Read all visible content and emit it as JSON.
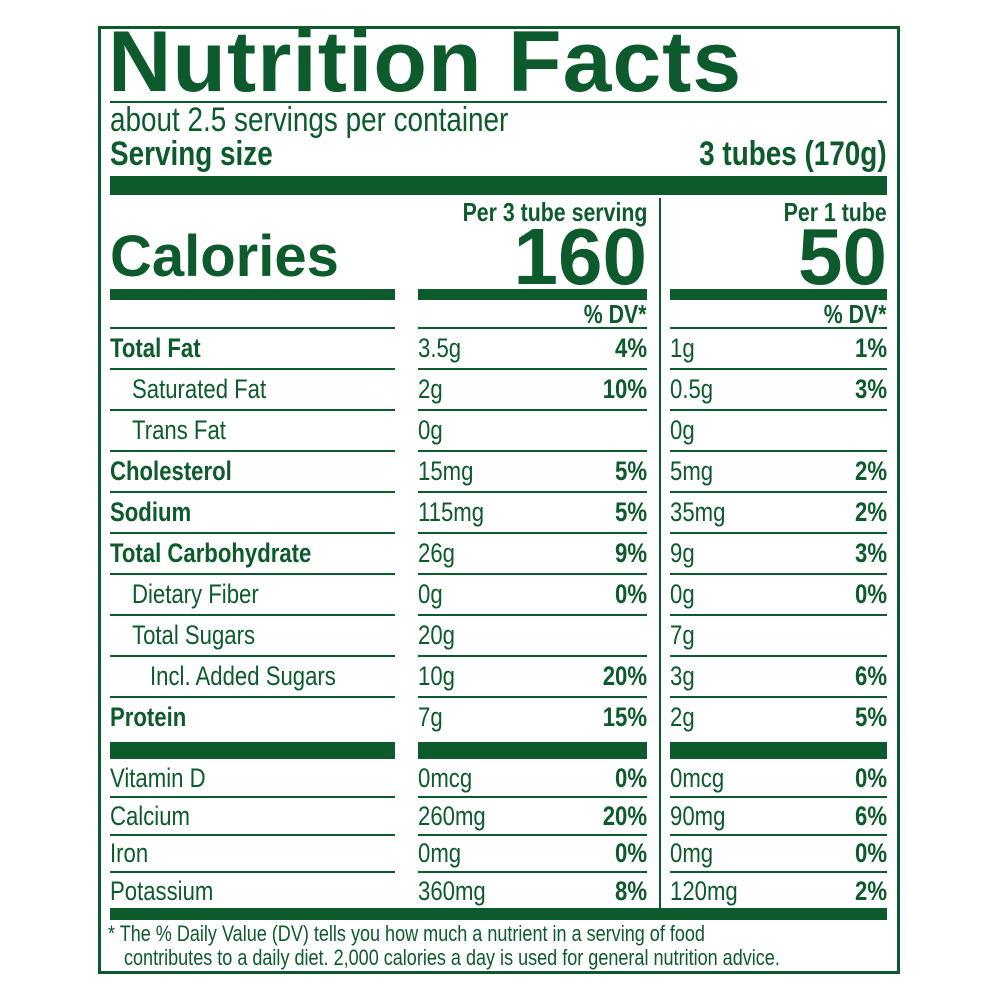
{
  "title": "Nutrition Facts",
  "servings_per_container": "about 2.5 servings per container",
  "serving_size_label": "Serving size",
  "serving_size_value": "3 tubes (170g)",
  "calories_label": "Calories",
  "columns": [
    {
      "header": "Per 3 tube serving",
      "calories": "160",
      "dv_header": "% DV*"
    },
    {
      "header": "Per 1 tube",
      "calories": "50",
      "dv_header": "% DV*"
    }
  ],
  "nutrients": [
    {
      "name": "Total Fat",
      "bold": true,
      "indent": 0,
      "c1_amount": "3.5g",
      "c1_dv": "4%",
      "c2_amount": "1g",
      "c2_dv": "1%"
    },
    {
      "name": "Saturated Fat",
      "bold": false,
      "indent": 1,
      "c1_amount": "2g",
      "c1_dv": "10%",
      "c2_amount": "0.5g",
      "c2_dv": "3%"
    },
    {
      "name": "Trans Fat",
      "bold": false,
      "indent": 1,
      "c1_amount": "0g",
      "c1_dv": "",
      "c2_amount": "0g",
      "c2_dv": ""
    },
    {
      "name": "Cholesterol",
      "bold": true,
      "indent": 0,
      "c1_amount": "15mg",
      "c1_dv": "5%",
      "c2_amount": "5mg",
      "c2_dv": "2%"
    },
    {
      "name": "Sodium",
      "bold": true,
      "indent": 0,
      "c1_amount": "115mg",
      "c1_dv": "5%",
      "c2_amount": "35mg",
      "c2_dv": "2%"
    },
    {
      "name": "Total Carbohydrate",
      "bold": true,
      "indent": 0,
      "c1_amount": "26g",
      "c1_dv": "9%",
      "c2_amount": "9g",
      "c2_dv": "3%"
    },
    {
      "name": "Dietary Fiber",
      "bold": false,
      "indent": 1,
      "c1_amount": "0g",
      "c1_dv": "0%",
      "c2_amount": "0g",
      "c2_dv": "0%"
    },
    {
      "name": "Total Sugars",
      "bold": false,
      "indent": 1,
      "c1_amount": "20g",
      "c1_dv": "",
      "c2_amount": "7g",
      "c2_dv": ""
    },
    {
      "name": "Incl. Added Sugars",
      "bold": false,
      "indent": 2,
      "c1_amount": "10g",
      "c1_dv": "20%",
      "c2_amount": "3g",
      "c2_dv": "6%"
    },
    {
      "name": "Protein",
      "bold": true,
      "indent": 0,
      "c1_amount": "7g",
      "c1_dv": "15%",
      "c2_amount": "2g",
      "c2_dv": "5%"
    }
  ],
  "vitamins": [
    {
      "name": "Vitamin D",
      "c1_amount": "0mcg",
      "c1_dv": "0%",
      "c2_amount": "0mcg",
      "c2_dv": "0%"
    },
    {
      "name": "Calcium",
      "c1_amount": "260mg",
      "c1_dv": "20%",
      "c2_amount": "90mg",
      "c2_dv": "6%"
    },
    {
      "name": "Iron",
      "c1_amount": "0mg",
      "c1_dv": "0%",
      "c2_amount": "0mg",
      "c2_dv": "0%"
    },
    {
      "name": "Potassium",
      "c1_amount": "360mg",
      "c1_dv": "8%",
      "c2_amount": "120mg",
      "c2_dv": "2%"
    }
  ],
  "footnote_line1": "* The % Daily Value (DV) tells you how much a nutrient in a serving of food",
  "footnote_line2": "contributes to a daily diet. 2,000 calories a day is used for general nutrition advice.",
  "colors": {
    "label_green": "#0d5a2c",
    "background": "#ffffff"
  }
}
